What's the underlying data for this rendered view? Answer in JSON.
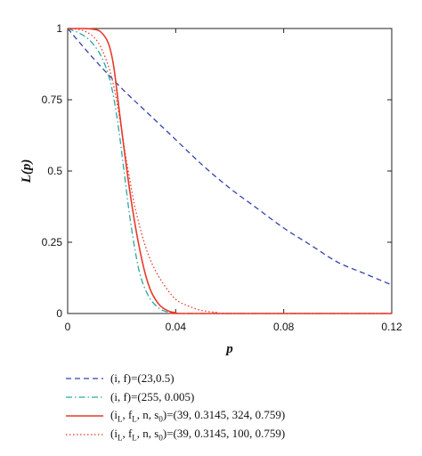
{
  "chart_data": {
    "type": "line",
    "xlabel": "p",
    "ylabel": "L(p)",
    "xlim": [
      0,
      0.12
    ],
    "ylim": [
      0,
      1
    ],
    "x_ticks": [
      "0",
      "0.04",
      "0.08",
      "0.12"
    ],
    "y_ticks": [
      "0",
      "0.25",
      "0.5",
      "0.75",
      "1"
    ],
    "grid": false,
    "legend_position": "bottom",
    "series": [
      {
        "name": "(i, f)=(23,0.5)",
        "color": "#3344aa",
        "style": "dashed",
        "x": [
          0,
          0.01,
          0.02,
          0.03,
          0.04,
          0.05,
          0.06,
          0.07,
          0.08,
          0.09,
          0.1,
          0.11,
          0.12
        ],
        "y": [
          1.0,
          0.89,
          0.79,
          0.7,
          0.61,
          0.52,
          0.44,
          0.37,
          0.3,
          0.24,
          0.18,
          0.14,
          0.1
        ]
      },
      {
        "name": "(i, f)=(255, 0.005)",
        "color": "#2aa6a0",
        "style": "dashdot",
        "x": [
          0,
          0.004,
          0.008,
          0.012,
          0.015,
          0.017,
          0.019,
          0.021,
          0.023,
          0.025,
          0.027,
          0.03,
          0.033,
          0.036,
          0.04,
          0.05,
          0.12
        ],
        "y": [
          1.0,
          0.985,
          0.96,
          0.91,
          0.84,
          0.76,
          0.64,
          0.49,
          0.34,
          0.22,
          0.13,
          0.06,
          0.025,
          0.008,
          0.002,
          0.0,
          0.0
        ]
      },
      {
        "name": "(i_L, f_L, n, s_0)=(39, 0.3145, 324, 0.759)",
        "color": "#e8392a",
        "style": "solid",
        "x": [
          0,
          0.006,
          0.009,
          0.012,
          0.015,
          0.017,
          0.019,
          0.021,
          0.023,
          0.025,
          0.027,
          0.029,
          0.031,
          0.034,
          0.037,
          0.04,
          0.045,
          0.12
        ],
        "y": [
          1.0,
          1.0,
          0.998,
          0.99,
          0.95,
          0.87,
          0.72,
          0.57,
          0.43,
          0.31,
          0.21,
          0.13,
          0.075,
          0.03,
          0.01,
          0.003,
          0.0,
          0.0
        ]
      },
      {
        "name": "(i_L, f_L, n, s_0)=(39, 0.3145, 100, 0.759)",
        "color": "#e8392a",
        "style": "dotted",
        "x": [
          0,
          0.005,
          0.009,
          0.012,
          0.015,
          0.017,
          0.019,
          0.021,
          0.023,
          0.025,
          0.028,
          0.031,
          0.035,
          0.04,
          0.045,
          0.05,
          0.055,
          0.06,
          0.12
        ],
        "y": [
          1.0,
          0.995,
          0.975,
          0.94,
          0.87,
          0.8,
          0.7,
          0.58,
          0.47,
          0.37,
          0.26,
          0.18,
          0.11,
          0.05,
          0.025,
          0.01,
          0.004,
          0.0,
          0.0
        ]
      }
    ]
  }
}
